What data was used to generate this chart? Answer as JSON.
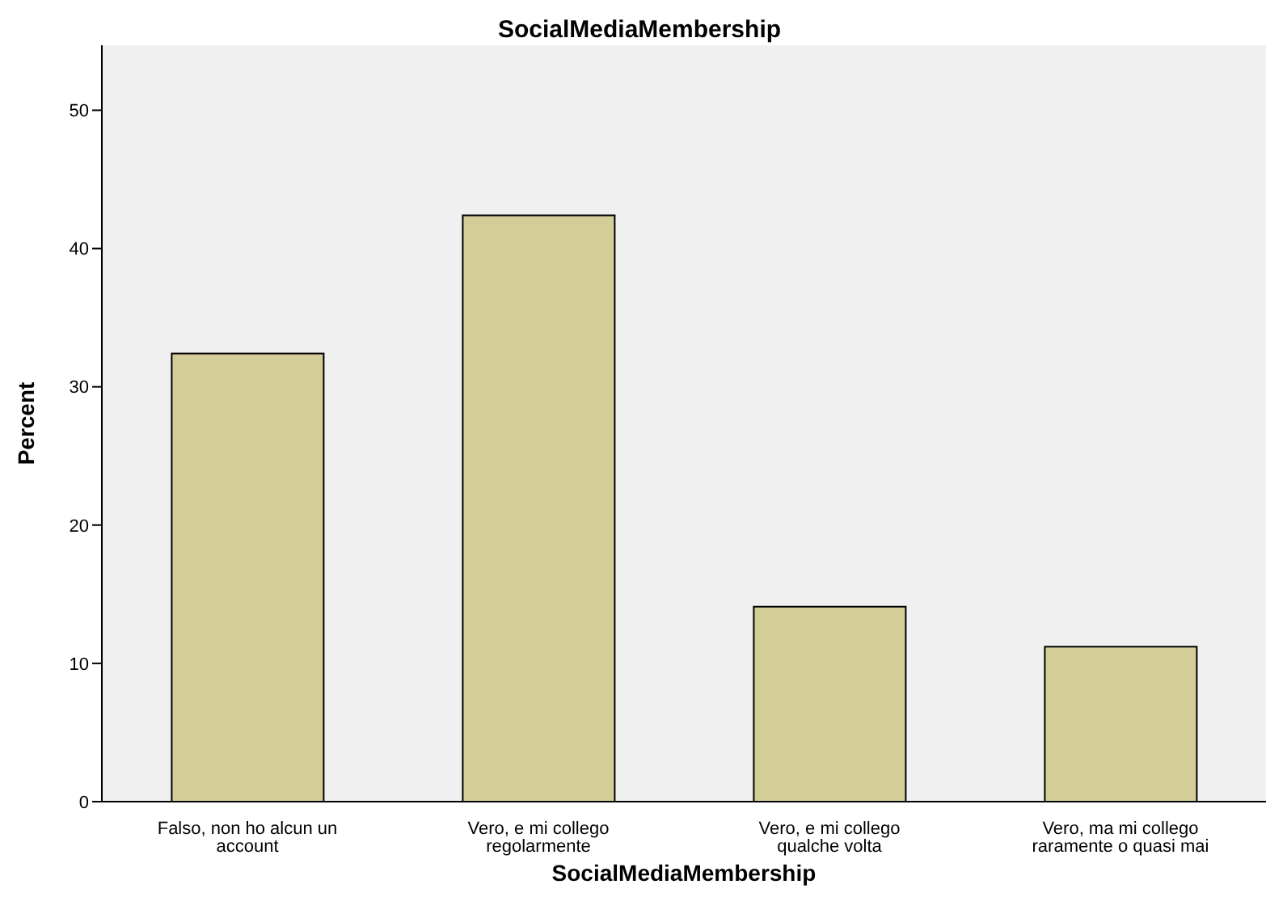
{
  "chart_data": {
    "type": "bar",
    "title": "SocialMediaMembership",
    "xlabel": "SocialMediaMembership",
    "ylabel": "Percent",
    "categories": [
      "Falso, non ho alcun un account",
      "Vero, e mi collego regolarmente",
      "Vero, e mi collego qualche volta",
      "Vero, ma mi collego raramente o quasi mai"
    ],
    "values": [
      32.4,
      42.4,
      14.1,
      11.2
    ],
    "color": "#d3ce97",
    "ylim": [
      0,
      54.7
    ],
    "yticks": [
      0,
      10,
      20,
      30,
      40,
      50
    ],
    "grid": false
  }
}
